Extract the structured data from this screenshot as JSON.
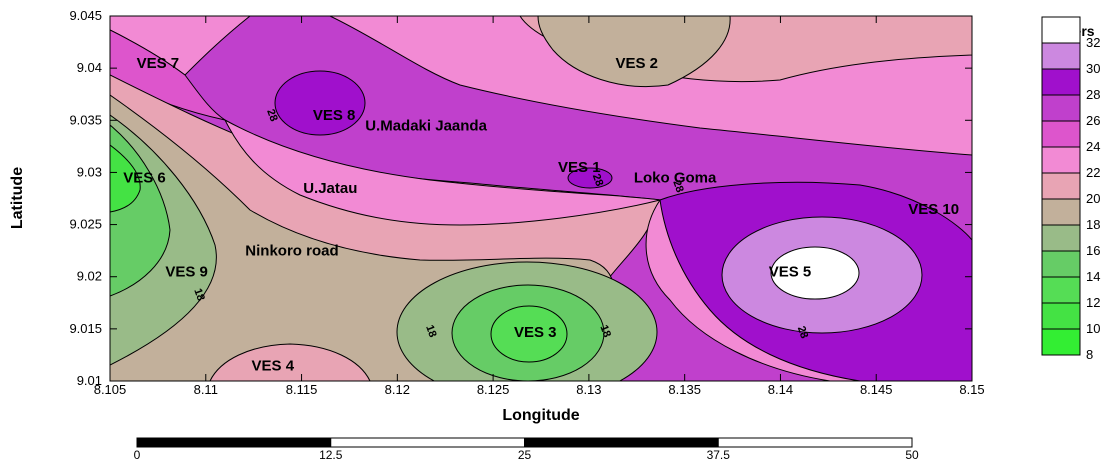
{
  "chart_data": {
    "type": "heatmap",
    "title": "",
    "xlabel": "Longitude",
    "ylabel": "Latitude",
    "xlim": [
      8.105,
      8.15
    ],
    "ylim": [
      9.01,
      9.045
    ],
    "x_ticks": [
      "8.105",
      "8.11",
      "8.115",
      "8.12",
      "8.125",
      "8.13",
      "8.135",
      "8.14",
      "8.145",
      "8.15"
    ],
    "y_ticks": [
      "9.01",
      "9.015",
      "9.02",
      "9.025",
      "9.03",
      "9.035",
      "9.04",
      "9.045"
    ],
    "legend": {
      "title": "Meters",
      "position": "right",
      "levels": [
        "8",
        "10",
        "12",
        "14",
        "16",
        "18",
        "20",
        "22",
        "24",
        "26",
        "28",
        "30",
        "32"
      ],
      "colors": [
        "#33ee33",
        "#44e244",
        "#55dd55",
        "#66cc66",
        "#99bb88",
        "#c2b09b",
        "#e8a4b4",
        "#f28ad4",
        "#dd55cc",
        "#c040cc",
        "#a010cc",
        "#cc88e0",
        "#ffffff"
      ]
    },
    "points": [
      {
        "label": "VES 7",
        "x": 8.1075,
        "y": 9.0405
      },
      {
        "label": "VES 2",
        "x": 8.1325,
        "y": 9.0405
      },
      {
        "label": "VES 8",
        "x": 8.1167,
        "y": 9.0355
      },
      {
        "label": "U.Madaki Jaanda",
        "x": 8.1215,
        "y": 9.0345
      },
      {
        "label": "VES 1",
        "x": 8.1295,
        "y": 9.0305
      },
      {
        "label": "Loko Goma",
        "x": 8.1345,
        "y": 9.0295
      },
      {
        "label": "VES 6",
        "x": 8.1068,
        "y": 9.0295
      },
      {
        "label": "U.Jatau",
        "x": 8.1165,
        "y": 9.0285
      },
      {
        "label": "VES 10",
        "x": 8.148,
        "y": 9.0265
      },
      {
        "label": "Ninkoro road",
        "x": 8.1145,
        "y": 9.0225
      },
      {
        "label": "VES 9",
        "x": 8.109,
        "y": 9.0205
      },
      {
        "label": "VES 5",
        "x": 8.1405,
        "y": 9.0205
      },
      {
        "label": "VES 3",
        "x": 8.1272,
        "y": 9.0147
      },
      {
        "label": "VES 4",
        "x": 8.1135,
        "y": 9.0115
      }
    ],
    "contour_labels": [
      {
        "text": "28",
        "x": 8.1135,
        "y": 9.0355
      },
      {
        "text": "28",
        "x": 8.1305,
        "y": 9.0293
      },
      {
        "text": "28",
        "x": 8.1347,
        "y": 9.0287
      },
      {
        "text": "18",
        "x": 8.1097,
        "y": 9.0183
      },
      {
        "text": "18",
        "x": 8.1218,
        "y": 9.0148
      },
      {
        "text": "18",
        "x": 8.1309,
        "y": 9.0148
      },
      {
        "text": "28",
        "x": 8.1412,
        "y": 9.0147
      }
    ]
  },
  "scale_bar": {
    "ticks": [
      "0",
      "12.5",
      "25",
      "37.5",
      "50"
    ]
  }
}
